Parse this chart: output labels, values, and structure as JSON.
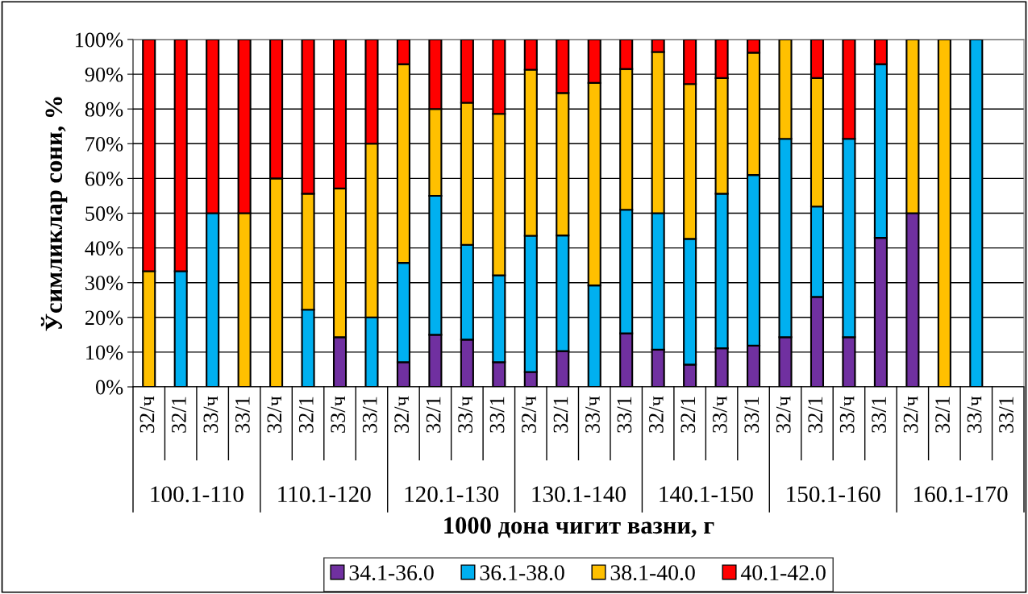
{
  "chart_data": {
    "type": "bar",
    "stacked": true,
    "xlabel": "1000 дона чигит вазни, г",
    "ylabel": "Ўсимликлар сони, %",
    "categories": [
      "32/ч",
      "32/1",
      "33/ч",
      "33/1",
      "32/ч",
      "32/1",
      "33/ч",
      "33/1",
      "32/ч",
      "32/1",
      "33/ч",
      "33/1",
      "32/ч",
      "32/1",
      "33/ч",
      "33/1",
      "32/ч",
      "32/1",
      "33/ч",
      "33/1",
      "32/ч",
      "32/1",
      "33/ч",
      "33/1",
      "32/ч",
      "32/1",
      "33/ч",
      "33/1"
    ],
    "annotations": [
      "100.1-110",
      "110.1-120",
      "120.1-130",
      "130.1-140",
      "140.1-150",
      "150.1-160",
      "160.1-170"
    ],
    "series": [
      {
        "name": "34.1-36.0",
        "color": "#7030a0",
        "values": [
          0,
          0,
          0,
          0,
          0,
          0,
          14.3,
          0,
          7.1,
          15,
          13.6,
          7.1,
          4.3,
          10.3,
          0,
          15.4,
          10.7,
          6.4,
          11.1,
          11.9,
          14.3,
          25.9,
          14.3,
          42.9,
          50,
          0,
          0,
          0
        ]
      },
      {
        "name": "36.1-38.0",
        "color": "#00b0f0",
        "values": [
          0,
          33.3,
          50,
          0,
          0,
          22.2,
          0,
          20,
          28.6,
          40,
          27.3,
          25,
          39.2,
          33.3,
          29.2,
          35.6,
          39.3,
          36.2,
          44.5,
          49.1,
          57.1,
          26,
          57.1,
          50,
          0,
          0,
          100,
          0
        ]
      },
      {
        "name": "38.1-40.0",
        "color": "#ffc000",
        "values": [
          33.3,
          0,
          0,
          50,
          60,
          33.4,
          42.8,
          50,
          57.2,
          25,
          40.9,
          46.5,
          47.8,
          41,
          58.3,
          40.5,
          46.4,
          44.6,
          33.3,
          35.2,
          28.6,
          37,
          0,
          0,
          50,
          100,
          0,
          0
        ]
      },
      {
        "name": "40.1-42.0",
        "color": "#ff0000",
        "values": [
          66.7,
          66.7,
          50,
          50,
          40,
          44.4,
          42.9,
          30,
          7.1,
          20,
          18.2,
          21.4,
          8.7,
          15.4,
          12.5,
          8.5,
          3.6,
          12.8,
          11.1,
          3.8,
          0,
          11.1,
          28.6,
          7.1,
          0,
          0,
          0,
          0
        ]
      }
    ],
    "ylim": [
      0,
      100
    ],
    "yticks": [
      {
        "value": 0,
        "label": "0%"
      },
      {
        "value": 10,
        "label": "10%"
      },
      {
        "value": 20,
        "label": "20%"
      },
      {
        "value": 30,
        "label": "30%"
      },
      {
        "value": 40,
        "label": "40%"
      },
      {
        "value": 50,
        "label": "50%"
      },
      {
        "value": 60,
        "label": "60%"
      },
      {
        "value": 70,
        "label": "70%"
      },
      {
        "value": 80,
        "label": "80%"
      },
      {
        "value": 90,
        "label": "90%"
      },
      {
        "value": 100,
        "label": "100%"
      }
    ],
    "grid": "y",
    "legend": "bottom"
  }
}
